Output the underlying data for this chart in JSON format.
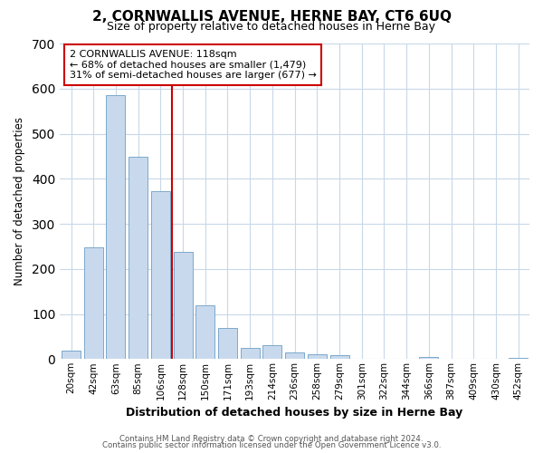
{
  "title": "2, CORNWALLIS AVENUE, HERNE BAY, CT6 6UQ",
  "subtitle": "Size of property relative to detached houses in Herne Bay",
  "xlabel": "Distribution of detached houses by size in Herne Bay",
  "ylabel": "Number of detached properties",
  "bar_labels": [
    "20sqm",
    "42sqm",
    "63sqm",
    "85sqm",
    "106sqm",
    "128sqm",
    "150sqm",
    "171sqm",
    "193sqm",
    "214sqm",
    "236sqm",
    "258sqm",
    "279sqm",
    "301sqm",
    "322sqm",
    "344sqm",
    "366sqm",
    "387sqm",
    "409sqm",
    "430sqm",
    "452sqm"
  ],
  "bar_heights": [
    18,
    248,
    585,
    448,
    372,
    238,
    120,
    68,
    24,
    31,
    14,
    10,
    8,
    0,
    0,
    0,
    5,
    0,
    0,
    0,
    3
  ],
  "bar_color": "#c9d9ed",
  "bar_edge_color": "#7ba8cc",
  "vline_x": 4.5,
  "vline_color": "#cc0000",
  "ylim": [
    0,
    700
  ],
  "yticks": [
    0,
    100,
    200,
    300,
    400,
    500,
    600,
    700
  ],
  "annotation_title": "2 CORNWALLIS AVENUE: 118sqm",
  "annotation_line1": "← 68% of detached houses are smaller (1,479)",
  "annotation_line2": "31% of semi-detached houses are larger (677) →",
  "annotation_box_color": "#ffffff",
  "annotation_box_edge": "#cc0000",
  "footer1": "Contains HM Land Registry data © Crown copyright and database right 2024.",
  "footer2": "Contains public sector information licensed under the Open Government Licence v3.0.",
  "background_color": "#ffffff",
  "grid_color": "#c8d8e8"
}
